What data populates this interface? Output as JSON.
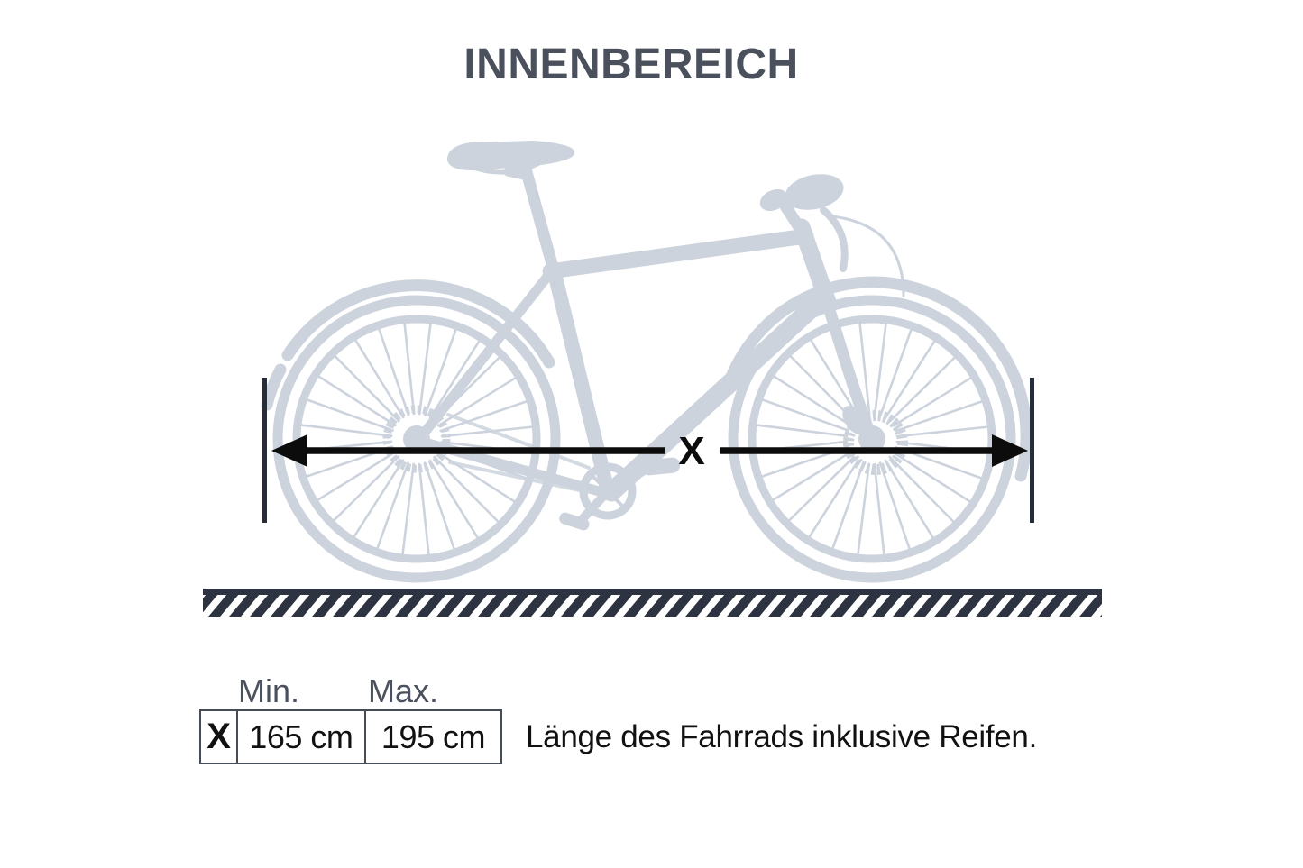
{
  "title": "INNENBEREICH",
  "diagram": {
    "dimension_label": "X"
  },
  "table": {
    "headers": {
      "min": "Min.",
      "max": "Max."
    },
    "row": {
      "label": "X",
      "min": "165 cm",
      "max": "195 cm"
    },
    "description": "Länge des Fahrrads inklusive Reifen."
  },
  "colors": {
    "title": "#4a515c",
    "bike": "#ccd3dd",
    "ground": "#2d3340",
    "bars": "#262c38",
    "ink": "#0c0c0c",
    "border": "#474d57",
    "value": "#111111"
  }
}
